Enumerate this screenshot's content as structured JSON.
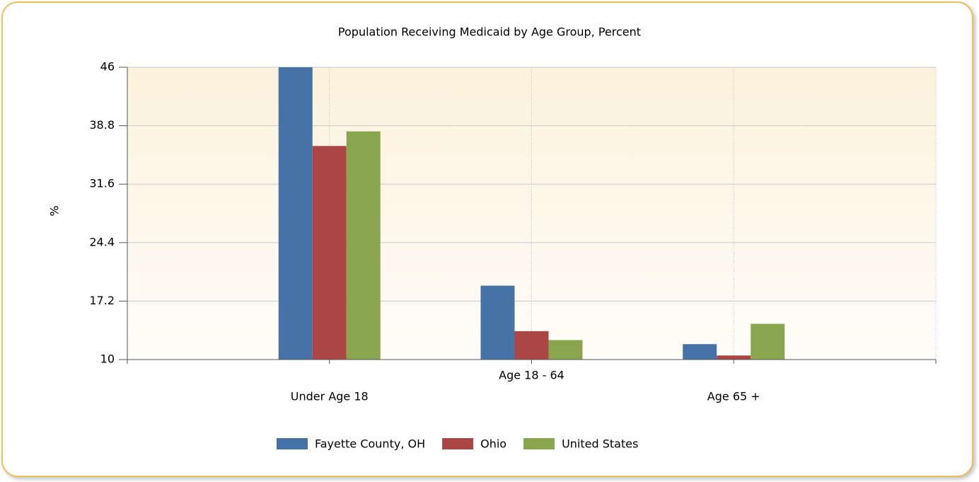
{
  "chart_data": {
    "type": "bar",
    "title": "Population Receiving Medicaid by Age Group, Percent",
    "y_label": "%",
    "categories": [
      "Under Age 18",
      "Age 18 - 64",
      "Age 65 +"
    ],
    "series": [
      {
        "name": "Fayette County, OH",
        "color": "#4572a7",
        "values": [
          46,
          19.1,
          11.9
        ]
      },
      {
        "name": "Ohio",
        "color": "#aa4643",
        "values": [
          36.3,
          13.5,
          10.5
        ]
      },
      {
        "name": "United States",
        "color": "#89a54e",
        "values": [
          38.1,
          12.4,
          14.4
        ]
      }
    ],
    "ylim": [
      10,
      46
    ],
    "yticks": [
      10,
      17.2,
      24.4,
      31.6,
      38.8,
      46
    ],
    "grid": true,
    "legend": "bottom"
  }
}
